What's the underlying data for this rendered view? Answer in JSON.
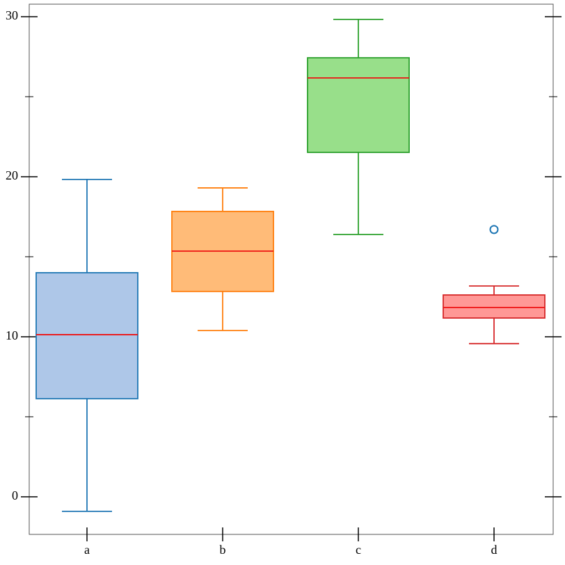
{
  "chart_data": {
    "type": "box",
    "categories": [
      "a",
      "b",
      "c",
      "d"
    ],
    "boxes": [
      {
        "whislo": -0.91,
        "q1": 6.13,
        "med": 10.13,
        "q3": 14.0,
        "whishi": 19.83,
        "color": "#1f77b4",
        "fill": "#aec7e8"
      },
      {
        "whislo": 10.39,
        "q1": 12.83,
        "med": 15.35,
        "q3": 17.83,
        "whishi": 19.3,
        "color": "#ff7f0e",
        "fill": "#ffbb78"
      },
      {
        "whislo": 16.39,
        "q1": 21.52,
        "med": 26.17,
        "q3": 27.43,
        "whishi": 29.83,
        "color": "#2ca02c",
        "fill": "#98df8a"
      },
      {
        "whislo": 9.57,
        "q1": 11.17,
        "med": 11.83,
        "q3": 12.61,
        "whishi": 13.17,
        "fliers": [
          16.7
        ],
        "color": "#d62728",
        "fill": "#ff9896",
        "flier_color": "#1f77b4"
      }
    ],
    "median_color": "#ee1111",
    "ylim": [
      -2.35,
      30.78
    ],
    "yticks": [
      0,
      10,
      20,
      30
    ],
    "yminor_ticks": [
      5,
      15,
      25
    ]
  }
}
